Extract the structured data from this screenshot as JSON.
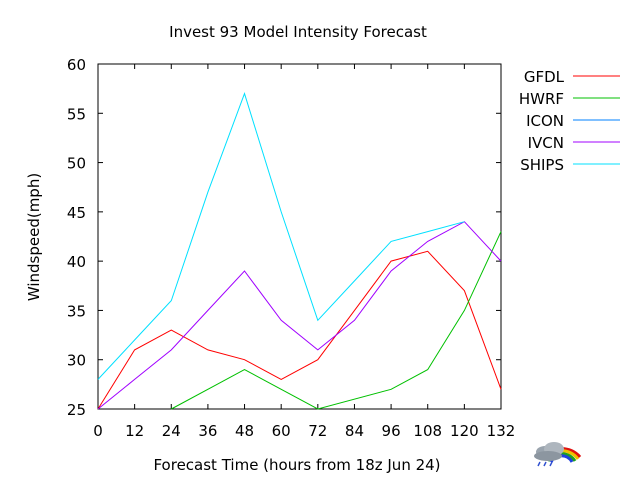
{
  "chart_data": {
    "type": "line",
    "title": "Invest 93 Model Intensity Forecast",
    "xlabel": "Forecast Time (hours from 18z  Jun 24)",
    "ylabel": "Windspeed(mph)",
    "xlim": [
      0,
      132
    ],
    "ylim": [
      25,
      60
    ],
    "xticks": [
      0,
      12,
      24,
      36,
      48,
      60,
      72,
      84,
      96,
      108,
      120,
      132
    ],
    "yticks": [
      25,
      30,
      35,
      40,
      45,
      50,
      55,
      60
    ],
    "grid": false,
    "legend_position": "right",
    "series": [
      {
        "name": "GFDL",
        "color": "#ff0000",
        "x": [
          0,
          12,
          24,
          36,
          48,
          60,
          72,
          84,
          96,
          108,
          120,
          132
        ],
        "y": [
          25,
          31,
          33,
          31,
          30,
          28,
          30,
          35,
          40,
          41,
          37,
          27
        ]
      },
      {
        "name": "HWRF",
        "color": "#00c000",
        "x": [
          24,
          48,
          72,
          96,
          108,
          120,
          132
        ],
        "y": [
          25,
          29,
          25,
          27,
          29,
          35,
          43
        ]
      },
      {
        "name": "ICON",
        "color": "#0080ff",
        "x": [],
        "y": []
      },
      {
        "name": "IVCN",
        "color": "#a000ff",
        "x": [
          0,
          12,
          24,
          36,
          48,
          60,
          72,
          84,
          96,
          108,
          120,
          132
        ],
        "y": [
          25,
          28,
          31,
          35,
          39,
          34,
          31,
          34,
          39,
          42,
          44,
          40
        ]
      },
      {
        "name": "SHIPS",
        "color": "#00e0ff",
        "x": [
          0,
          12,
          24,
          36,
          48,
          60,
          72,
          84,
          96,
          108,
          120
        ],
        "y": [
          28,
          32,
          36,
          47,
          57,
          45,
          34,
          38,
          42,
          43,
          44
        ]
      }
    ]
  },
  "logo": {
    "name": "weather-cloud-rainbow-logo"
  }
}
